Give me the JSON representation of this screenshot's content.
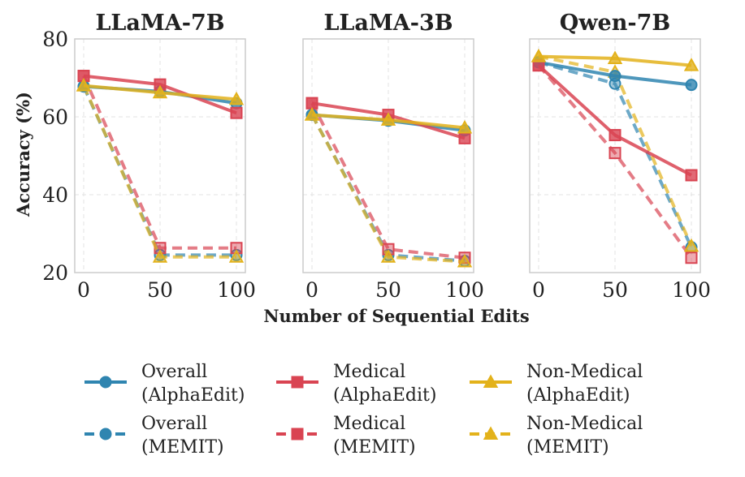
{
  "chart_data": [
    {
      "type": "line",
      "title": "LLaMA-7B",
      "x": [
        0,
        50,
        100
      ],
      "xticks": [
        "0",
        "50",
        "100"
      ],
      "ylim": [
        20,
        80
      ],
      "yticks": [
        "20",
        "40",
        "60",
        "80"
      ],
      "series": [
        {
          "key": "overall_alpha",
          "values": [
            67.8,
            66.5,
            63.5
          ]
        },
        {
          "key": "overall_memit",
          "values": [
            67.8,
            24.5,
            24.5
          ]
        },
        {
          "key": "medical_alpha",
          "values": [
            70.5,
            68.3,
            61.0
          ]
        },
        {
          "key": "medical_memit",
          "values": [
            70.5,
            26.3,
            26.3
          ]
        },
        {
          "key": "nonmedical_alpha",
          "values": [
            68.0,
            66.2,
            64.5
          ]
        },
        {
          "key": "nonmedical_memit",
          "values": [
            68.0,
            24.0,
            24.0
          ]
        }
      ]
    },
    {
      "type": "line",
      "title": "LLaMA-3B",
      "x": [
        0,
        50,
        100
      ],
      "xticks": [
        "0",
        "50",
        "100"
      ],
      "ylim": [
        20,
        80
      ],
      "series": [
        {
          "key": "overall_alpha",
          "values": [
            60.5,
            59.0,
            56.5
          ]
        },
        {
          "key": "overall_memit",
          "values": [
            60.5,
            24.5,
            23.0
          ]
        },
        {
          "key": "medical_alpha",
          "values": [
            63.5,
            60.5,
            54.5
          ]
        },
        {
          "key": "medical_memit",
          "values": [
            63.5,
            26.0,
            23.8
          ]
        },
        {
          "key": "nonmedical_alpha",
          "values": [
            60.5,
            59.2,
            57.2
          ]
        },
        {
          "key": "nonmedical_memit",
          "values": [
            60.5,
            24.0,
            22.8
          ]
        }
      ]
    },
    {
      "type": "line",
      "title": "Qwen-7B",
      "x": [
        0,
        50,
        100
      ],
      "xticks": [
        "0",
        "50",
        "100"
      ],
      "ylim": [
        20,
        80
      ],
      "series": [
        {
          "key": "overall_alpha",
          "values": [
            74.0,
            70.5,
            68.2
          ]
        },
        {
          "key": "overall_memit",
          "values": [
            74.0,
            68.5,
            26.5
          ]
        },
        {
          "key": "medical_alpha",
          "values": [
            73.2,
            55.3,
            45.0
          ]
        },
        {
          "key": "medical_memit",
          "values": [
            73.2,
            50.7,
            23.8
          ]
        },
        {
          "key": "nonmedical_alpha",
          "values": [
            75.5,
            75.0,
            73.2
          ]
        },
        {
          "key": "nonmedical_memit",
          "values": [
            75.5,
            71.5,
            26.8
          ]
        }
      ]
    }
  ],
  "ylabel": "Accuracy (%)",
  "xlabel": "Number of Sequential Edits",
  "series_styles": {
    "overall_alpha": {
      "color": "#2f85b0",
      "marker": "circle",
      "dashed": false
    },
    "overall_memit": {
      "color": "#2f85b0",
      "marker": "circle",
      "dashed": true
    },
    "medical_alpha": {
      "color": "#d94452",
      "marker": "square",
      "dashed": false
    },
    "medical_memit": {
      "color": "#d94452",
      "marker": "square",
      "dashed": true
    },
    "nonmedical_alpha": {
      "color": "#e3b21b",
      "marker": "triangle",
      "dashed": false
    },
    "nonmedical_memit": {
      "color": "#e3b21b",
      "marker": "triangle",
      "dashed": true
    }
  },
  "legend": [
    {
      "key": "overall_alpha",
      "line1": "Overall",
      "line2": "(AlphaEdit)"
    },
    {
      "key": "medical_alpha",
      "line1": "Medical",
      "line2": "(AlphaEdit)"
    },
    {
      "key": "nonmedical_alpha",
      "line1": "Non-Medical",
      "line2": "(AlphaEdit)"
    },
    {
      "key": "overall_memit",
      "line1": "Overall",
      "line2": "(MEMIT)"
    },
    {
      "key": "medical_memit",
      "line1": "Medical",
      "line2": "(MEMIT)"
    },
    {
      "key": "nonmedical_memit",
      "line1": "Non-Medical",
      "line2": "(MEMIT)"
    }
  ]
}
